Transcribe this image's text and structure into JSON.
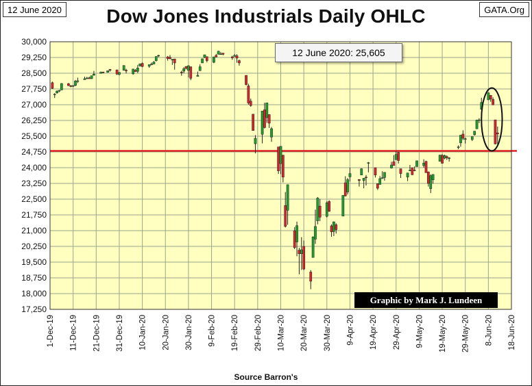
{
  "header": {
    "date": "12 June 2020",
    "brand": "GATA.Org",
    "title": "Dow Jones Industrials Daily OHLC"
  },
  "footer": {
    "source": "Source Barron's"
  },
  "colors": {
    "plot_bg": "#ffffc0",
    "grid": "#9aa58a",
    "up": "#1e9e2c",
    "down": "#d8242a",
    "ref_line": "#e02020"
  },
  "chart_data": {
    "type": "candlestick",
    "title": "Dow Jones Industrials Daily OHLC",
    "xlabel": "Source Barron's",
    "ylabel": "",
    "ylim": [
      17250,
      30000
    ],
    "yticks": [
      30000,
      29250,
      28500,
      27750,
      27000,
      26250,
      25500,
      24750,
      24000,
      23250,
      22500,
      21750,
      21000,
      20250,
      19500,
      18750,
      18000,
      17250
    ],
    "ytick_labels": [
      "30,000",
      "29,250",
      "28,500",
      "27,750",
      "27,000",
      "26,250",
      "25,500",
      "24,750",
      "24,000",
      "23,250",
      "22,500",
      "21,750",
      "21,000",
      "20,250",
      "19,500",
      "18,750",
      "18,000",
      "17,250"
    ],
    "xlim": [
      "2019-12-01",
      "2020-06-18"
    ],
    "xtick_labels": [
      "1-Dec-19",
      "11-Dec-19",
      "21-Dec-19",
      "31-Dec-19",
      "10-Jan-20",
      "20-Jan-20",
      "30-Jan-20",
      "9-Feb-20",
      "19-Feb-20",
      "29-Feb-20",
      "10-Mar-20",
      "20-Mar-20",
      "30-Mar-20",
      "9-Apr-20",
      "19-Apr-20",
      "29-Apr-20",
      "9-May-20",
      "19-May-20",
      "29-May-20",
      "8-Jun-20",
      "18-Jun-20"
    ],
    "reference_line": {
      "value": 24800,
      "color": "#e02020"
    },
    "annotation": "12 June 2020: 25,605",
    "credit": "Graphic by Mark J. Lundeen",
    "highlight_ellipse": {
      "x_from": "2020-06-05",
      "x_to": "2020-06-14",
      "y_from": 24800,
      "y_to": 27800
    },
    "ohlc": [
      [
        "2019-12-02",
        28050,
        28100,
        27750,
        27780
      ],
      [
        "2019-12-03",
        27500,
        27550,
        27320,
        27500
      ],
      [
        "2019-12-04",
        27560,
        27680,
        27530,
        27650
      ],
      [
        "2019-12-05",
        27680,
        27710,
        27600,
        27680
      ],
      [
        "2019-12-06",
        27700,
        28030,
        27700,
        28010
      ],
      [
        "2019-12-09",
        28000,
        28040,
        27890,
        27910
      ],
      [
        "2019-12-10",
        27900,
        27940,
        27830,
        27880
      ],
      [
        "2019-12-11",
        27880,
        27940,
        27840,
        27910
      ],
      [
        "2019-12-12",
        27920,
        28180,
        27880,
        28130
      ],
      [
        "2019-12-13",
        28140,
        28290,
        28030,
        28140
      ],
      [
        "2019-12-16",
        28190,
        28340,
        28190,
        28240
      ],
      [
        "2019-12-17",
        28250,
        28330,
        28240,
        28270
      ],
      [
        "2019-12-18",
        28280,
        28330,
        28230,
        28240
      ],
      [
        "2019-12-19",
        28240,
        28380,
        28230,
        28380
      ],
      [
        "2019-12-20",
        28400,
        28610,
        28400,
        28460
      ],
      [
        "2019-12-23",
        28490,
        28580,
        28490,
        28550
      ],
      [
        "2019-12-24",
        28560,
        28570,
        28500,
        28520
      ],
      [
        "2019-12-26",
        28540,
        28620,
        28540,
        28620
      ],
      [
        "2019-12-27",
        28680,
        28700,
        28580,
        28640
      ],
      [
        "2019-12-30",
        28660,
        28670,
        28420,
        28460
      ],
      [
        "2019-12-31",
        28440,
        28550,
        28400,
        28540
      ],
      [
        "2020-01-02",
        28640,
        28880,
        28630,
        28870
      ],
      [
        "2020-01-03",
        28640,
        28710,
        28490,
        28630
      ],
      [
        "2020-01-06",
        28470,
        28710,
        28430,
        28700
      ],
      [
        "2020-01-07",
        28640,
        28690,
        28560,
        28580
      ],
      [
        "2020-01-08",
        28590,
        28900,
        28510,
        28750
      ],
      [
        "2020-01-09",
        28840,
        28960,
        28830,
        28950
      ],
      [
        "2020-01-10",
        28970,
        29010,
        28790,
        28820
      ],
      [
        "2020-01-13",
        28830,
        28910,
        28760,
        28910
      ],
      [
        "2020-01-14",
        28920,
        29010,
        28880,
        28940
      ],
      [
        "2020-01-15",
        28940,
        29080,
        28920,
        29030
      ],
      [
        "2020-01-16",
        29100,
        29300,
        29060,
        29300
      ],
      [
        "2020-01-17",
        29320,
        29380,
        29270,
        29350
      ],
      [
        "2020-01-21",
        29280,
        29320,
        29100,
        29200
      ],
      [
        "2020-01-22",
        29260,
        29370,
        29170,
        29190
      ],
      [
        "2020-01-23",
        29150,
        29180,
        28900,
        29160
      ],
      [
        "2020-01-24",
        29180,
        29190,
        28670,
        28990
      ],
      [
        "2020-01-27",
        28550,
        28620,
        28380,
        28540
      ],
      [
        "2020-01-28",
        28600,
        28790,
        28500,
        28720
      ],
      [
        "2020-01-29",
        28820,
        28840,
        28680,
        28730
      ],
      [
        "2020-01-30",
        28640,
        28870,
        28300,
        28860
      ],
      [
        "2020-01-31",
        28810,
        28810,
        28170,
        28260
      ],
      [
        "2020-02-03",
        28350,
        28580,
        28350,
        28400
      ],
      [
        "2020-02-04",
        28620,
        28930,
        28620,
        28810
      ],
      [
        "2020-02-05",
        28990,
        29200,
        28990,
        29190
      ],
      [
        "2020-02-06",
        29250,
        29380,
        29220,
        29380
      ],
      [
        "2020-02-07",
        29290,
        29290,
        29020,
        29100
      ],
      [
        "2020-02-10",
        29020,
        29280,
        28980,
        29280
      ],
      [
        "2020-02-11",
        29350,
        29420,
        29260,
        29280
      ],
      [
        "2020-02-12",
        29400,
        29570,
        29400,
        29550
      ],
      [
        "2020-02-13",
        29400,
        29510,
        29380,
        29420
      ],
      [
        "2020-02-14",
        29460,
        29450,
        29360,
        29400
      ],
      [
        "2020-02-18",
        29280,
        29330,
        29140,
        29230
      ],
      [
        "2020-02-19",
        29300,
        29410,
        29300,
        29350
      ],
      [
        "2020-02-20",
        29330,
        29410,
        29000,
        29220
      ],
      [
        "2020-02-21",
        29100,
        29150,
        28860,
        28990
      ],
      [
        "2020-02-24",
        28400,
        28400,
        27920,
        27960
      ],
      [
        "2020-02-25",
        27900,
        28000,
        27000,
        27080
      ],
      [
        "2020-02-26",
        27170,
        27290,
        26900,
        26960
      ],
      [
        "2020-02-27",
        26550,
        26550,
        25770,
        25770
      ],
      [
        "2020-02-28",
        25140,
        25550,
        24680,
        25400
      ],
      [
        "2020-03-02",
        25590,
        26710,
        25160,
        26700
      ],
      [
        "2020-03-03",
        26760,
        27100,
        25870,
        25910
      ],
      [
        "2020-03-04",
        26380,
        27100,
        26130,
        27090
      ],
      [
        "2020-03-05",
        26530,
        26550,
        25890,
        26120
      ],
      [
        "2020-03-06",
        25460,
        25940,
        25230,
        25860
      ],
      [
        "2020-03-09",
        24990,
        24990,
        23700,
        23850
      ],
      [
        "2020-03-10",
        24190,
        25020,
        23690,
        25020
      ],
      [
        "2020-03-11",
        24600,
        24600,
        23300,
        23550
      ],
      [
        "2020-03-12",
        22200,
        22840,
        21150,
        21200
      ],
      [
        "2020-03-13",
        21970,
        23190,
        21280,
        23190
      ],
      [
        "2020-03-16",
        21000,
        21170,
        20120,
        20190
      ],
      [
        "2020-03-17",
        20460,
        21430,
        19780,
        21240
      ],
      [
        "2020-03-18",
        20070,
        20180,
        18920,
        19900
      ],
      [
        "2020-03-19",
        19900,
        20690,
        19130,
        20090
      ],
      [
        "2020-03-20",
        20250,
        20530,
        19120,
        19170
      ],
      [
        "2020-03-23",
        19030,
        19120,
        18210,
        18590
      ],
      [
        "2020-03-24",
        19720,
        20730,
        19720,
        20700
      ],
      [
        "2020-03-25",
        20600,
        22000,
        20370,
        21200
      ],
      [
        "2020-03-26",
        21470,
        22600,
        21300,
        22550
      ],
      [
        "2020-03-27",
        22170,
        22510,
        21450,
        21640
      ],
      [
        "2020-03-30",
        21680,
        22400,
        21630,
        22330
      ],
      [
        "2020-03-31",
        22390,
        22450,
        21900,
        21920
      ],
      [
        "2020-04-01",
        21230,
        21300,
        20710,
        20940
      ],
      [
        "2020-04-02",
        20960,
        21440,
        20740,
        21420
      ],
      [
        "2020-04-03",
        21280,
        21350,
        20860,
        21050
      ],
      [
        "2020-04-06",
        21690,
        22690,
        21690,
        22680
      ],
      [
        "2020-04-07",
        23280,
        23590,
        22630,
        22650
      ],
      [
        "2020-04-08",
        22840,
        23510,
        22720,
        23430
      ],
      [
        "2020-04-09",
        23560,
        24000,
        23340,
        23720
      ],
      [
        "2020-04-13",
        23440,
        23440,
        23100,
        23390
      ],
      [
        "2020-04-14",
        23650,
        23970,
        23650,
        23950
      ],
      [
        "2020-04-15",
        23390,
        23480,
        23020,
        23500
      ],
      [
        "2020-04-16",
        23550,
        23650,
        23150,
        23540
      ],
      [
        "2020-04-17",
        24240,
        24270,
        23780,
        24240
      ],
      [
        "2020-04-20",
        24000,
        24000,
        23530,
        23650
      ],
      [
        "2020-04-21",
        23240,
        23250,
        22940,
        23020
      ],
      [
        "2020-04-22",
        23200,
        23600,
        23200,
        23480
      ],
      [
        "2020-04-23",
        23480,
        23830,
        23470,
        23520
      ],
      [
        "2020-04-24",
        23530,
        23780,
        23380,
        23780
      ],
      [
        "2020-04-27",
        23980,
        24280,
        23960,
        24130
      ],
      [
        "2020-04-28",
        24280,
        24600,
        24100,
        24100
      ],
      [
        "2020-04-29",
        24380,
        24790,
        24380,
        24630
      ],
      [
        "2020-04-30",
        24730,
        24750,
        24200,
        24340
      ],
      [
        "2020-05-01",
        23950,
        23950,
        23510,
        23720
      ],
      [
        "2020-05-04",
        23550,
        23740,
        23360,
        23750
      ],
      [
        "2020-05-05",
        23870,
        24130,
        23860,
        23880
      ],
      [
        "2020-05-06",
        24000,
        24000,
        23650,
        23660
      ],
      [
        "2020-05-07",
        23890,
        24060,
        23830,
        23880
      ],
      [
        "2020-05-08",
        24050,
        24330,
        24050,
        24330
      ],
      [
        "2020-05-11",
        24100,
        24400,
        24000,
        24220
      ],
      [
        "2020-05-12",
        24300,
        24330,
        23760,
        23760
      ],
      [
        "2020-05-13",
        23800,
        23820,
        23100,
        23250
      ],
      [
        "2020-05-14",
        23000,
        23680,
        22790,
        23620
      ],
      [
        "2020-05-15",
        23420,
        23690,
        23240,
        23680
      ],
      [
        "2020-05-18",
        24300,
        24610,
        24300,
        24600
      ],
      [
        "2020-05-19",
        24590,
        24650,
        24200,
        24210
      ],
      [
        "2020-05-20",
        24450,
        24620,
        24400,
        24580
      ],
      [
        "2020-05-21",
        24530,
        24580,
        24370,
        24470
      ],
      [
        "2020-05-22",
        24430,
        24500,
        24290,
        24470
      ],
      [
        "2020-05-26",
        24990,
        25060,
        24880,
        24990
      ],
      [
        "2020-05-27",
        25180,
        25560,
        25000,
        25550
      ],
      [
        "2020-05-28",
        25600,
        25780,
        25320,
        25400
      ],
      [
        "2020-05-29",
        25360,
        25430,
        25150,
        25380
      ],
      [
        "2020-06-01",
        25340,
        25480,
        25270,
        25480
      ],
      [
        "2020-06-02",
        25570,
        25750,
        25530,
        25740
      ],
      [
        "2020-06-03",
        25850,
        26290,
        25850,
        26270
      ],
      [
        "2020-06-04",
        26270,
        26360,
        26120,
        26280
      ],
      [
        "2020-06-05",
        26780,
        27330,
        26780,
        27110
      ],
      [
        "2020-06-08",
        27230,
        27580,
        27230,
        27570
      ],
      [
        "2020-06-09",
        27450,
        27450,
        27140,
        27270
      ],
      [
        "2020-06-10",
        27250,
        27350,
        26990,
        26990
      ],
      [
        "2020-06-11",
        26280,
        26280,
        25110,
        25130
      ],
      [
        "2020-06-12",
        25660,
        25960,
        25120,
        25605
      ]
    ]
  }
}
